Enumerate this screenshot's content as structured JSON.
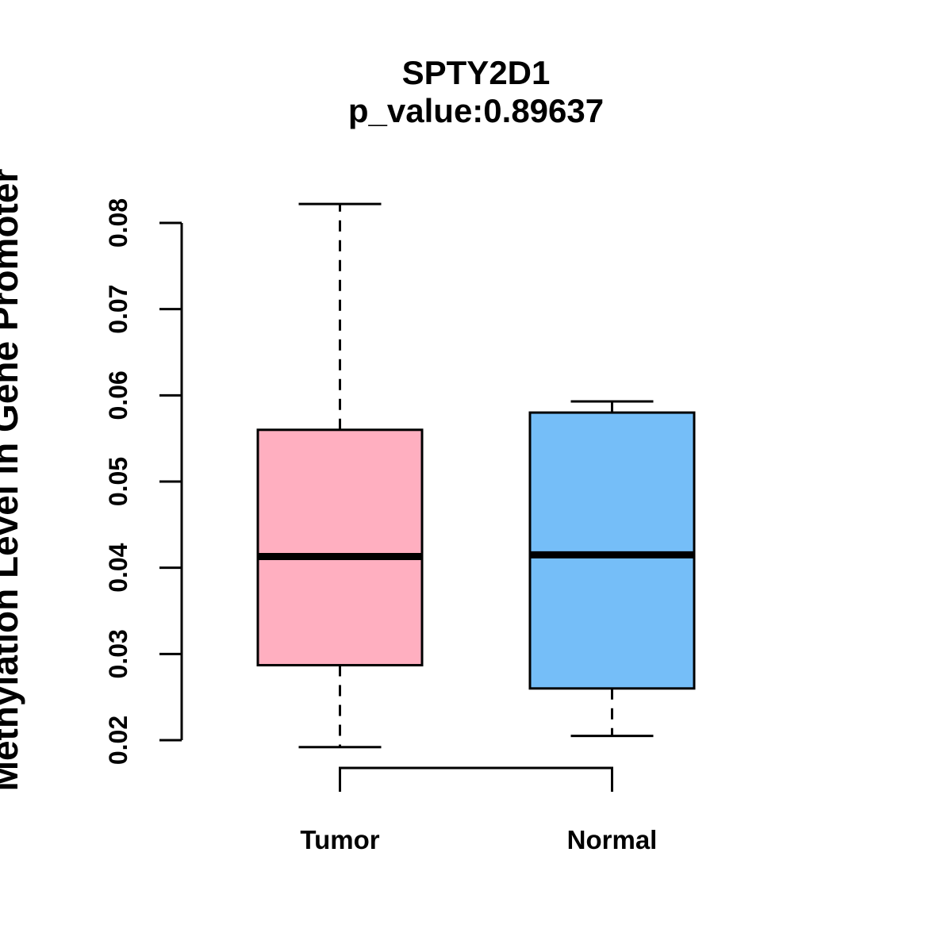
{
  "chart_data": {
    "type": "boxplot",
    "title": "SPTY2D1",
    "subtitle": "p_value:0.89637",
    "ylabel": "Methylation Level in Gene Promoter",
    "xlabel": "",
    "categories": [
      "Tumor",
      "Normal"
    ],
    "series": [
      {
        "name": "Tumor",
        "color": "#FFAFC0",
        "whisker_low": 0.0192,
        "q1": 0.0287,
        "median": 0.0413,
        "q3": 0.056,
        "whisker_high": 0.0822
      },
      {
        "name": "Normal",
        "color": "#75BEF8",
        "whisker_low": 0.0205,
        "q1": 0.026,
        "median": 0.0415,
        "q3": 0.058,
        "whisker_high": 0.0593
      }
    ],
    "y_ticks": [
      "0.02",
      "0.03",
      "0.04",
      "0.05",
      "0.06",
      "0.07",
      "0.08"
    ],
    "ylim": [
      0.02,
      0.08
    ],
    "grid": false,
    "legend": null,
    "colors": {
      "stroke": "#000000",
      "background": "#FFFFFF",
      "tumor_fill": "#FFAFC0",
      "normal_fill": "#75BEF8"
    }
  }
}
